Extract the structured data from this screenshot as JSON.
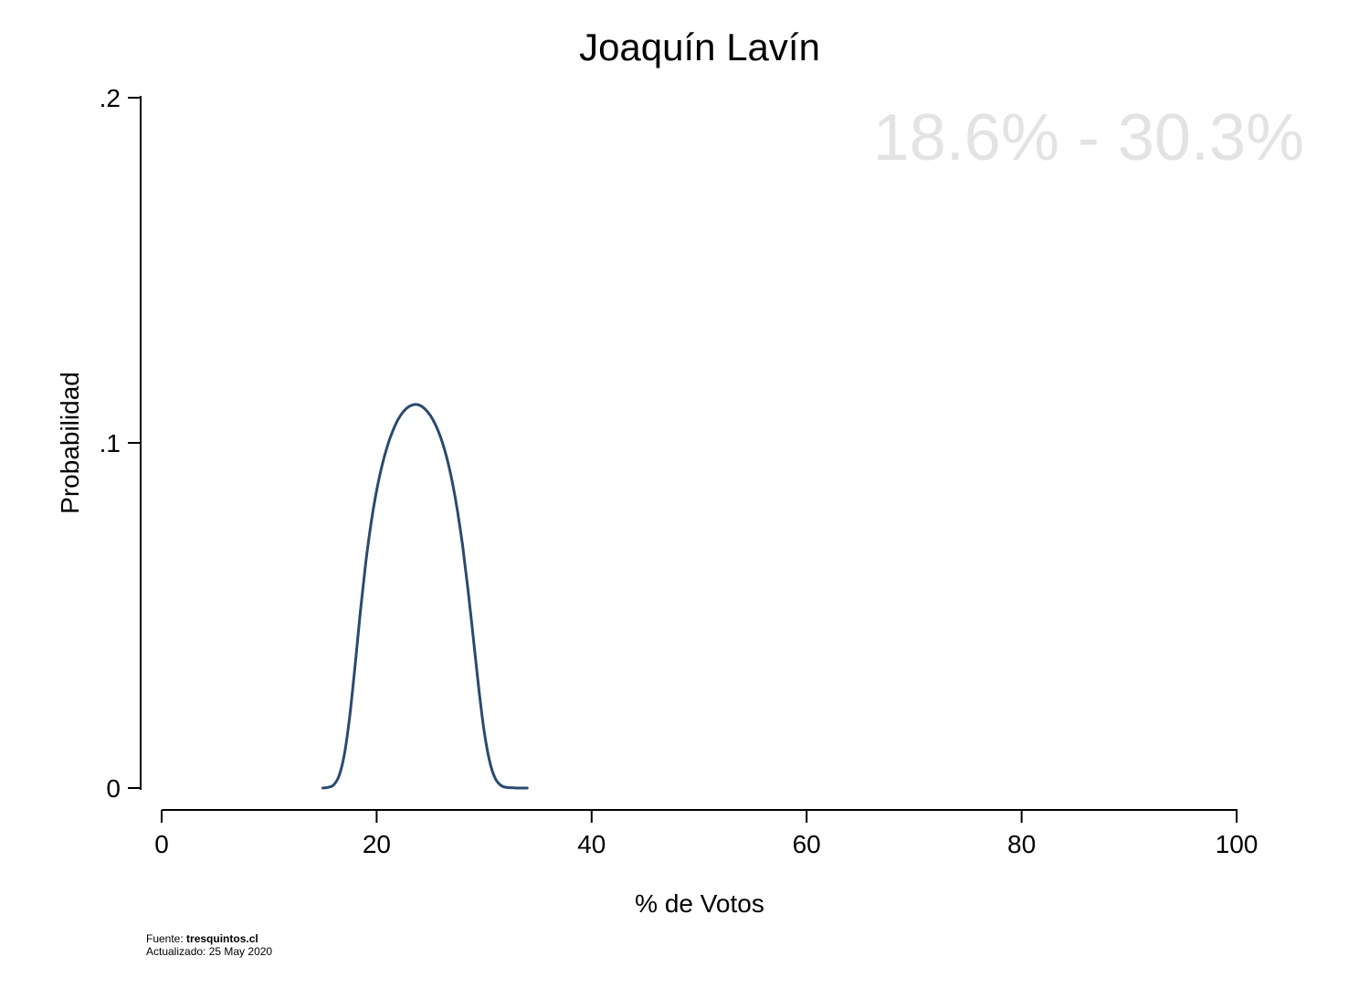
{
  "chart_data": {
    "type": "line",
    "title": "Joaquín Lavín",
    "xlabel": "% de Votos",
    "ylabel": "Probabilidad",
    "xlim": [
      0,
      100
    ],
    "ylim": [
      0,
      0.2
    ],
    "x_ticks": [
      0,
      20,
      40,
      60,
      80,
      100
    ],
    "x_tick_labels": [
      "0",
      "20",
      "40",
      "60",
      "80",
      "100"
    ],
    "y_ticks": [
      0,
      0.1,
      0.2
    ],
    "y_tick_labels": [
      "0",
      ".1",
      ".2"
    ],
    "annotation": "18.6% - 30.3%",
    "grid": false,
    "line_color": "#2a4a6e",
    "annotation_color": "#e3e3e3",
    "series": [
      {
        "x": [
          15,
          15.5,
          16,
          16.5,
          17,
          17.5,
          18,
          18.5,
          19,
          19.5,
          20,
          20.5,
          21,
          21.5,
          22,
          22.5,
          23,
          23.5,
          24,
          24.5,
          25,
          25.5,
          26,
          26.5,
          27,
          27.5,
          28,
          28.5,
          29,
          29.5,
          30,
          30.5,
          31,
          31.5,
          32,
          32.5,
          33,
          33.5,
          34
        ],
        "y": [
          0.0,
          0.0002,
          0.0009,
          0.0035,
          0.0098,
          0.0209,
          0.0357,
          0.0514,
          0.0656,
          0.0771,
          0.0862,
          0.0934,
          0.0991,
          0.1035,
          0.1068,
          0.1091,
          0.1105,
          0.1111,
          0.1109,
          0.1098,
          0.1079,
          0.1051,
          0.1012,
          0.096,
          0.0892,
          0.0806,
          0.0701,
          0.0575,
          0.0433,
          0.0289,
          0.0165,
          0.0079,
          0.003,
          0.0009,
          0.0002,
          0.0001,
          0.0,
          0.0,
          0.0
        ]
      }
    ]
  },
  "footer": {
    "source_prefix": "Fuente: ",
    "source_site": "tresquintos.cl",
    "updated": "Actualizado: 25 May 2020"
  }
}
